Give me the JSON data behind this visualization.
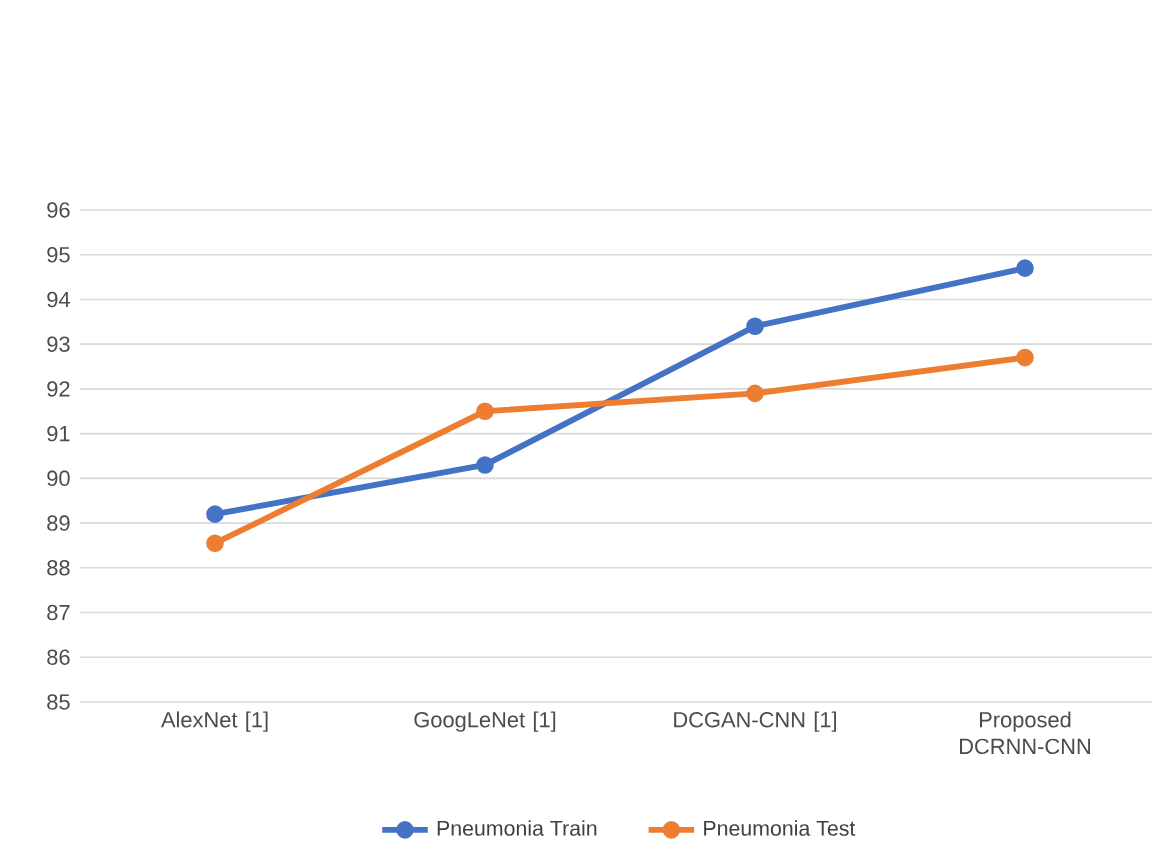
{
  "chart_data": {
    "type": "line",
    "categories": [
      "AlexNet [1]",
      "GoogLeNet [1]",
      "DCGAN-CNN [1]",
      "Proposed DCRNN-CNN"
    ],
    "series": [
      {
        "name": "Pneumonia  Train",
        "color": "#4472c4",
        "values": [
          89.2,
          90.3,
          93.4,
          94.7
        ]
      },
      {
        "name": "Pneumonia  Test",
        "color": "#ed7d31",
        "values": [
          88.55,
          91.5,
          91.9,
          92.7
        ]
      }
    ],
    "ylim": [
      85,
      96
    ],
    "yticks": [
      85,
      86,
      87,
      88,
      89,
      90,
      91,
      92,
      93,
      94,
      95,
      96
    ],
    "grid": "y",
    "legend": "bottom",
    "marker": "circle",
    "line_style": "solid"
  }
}
